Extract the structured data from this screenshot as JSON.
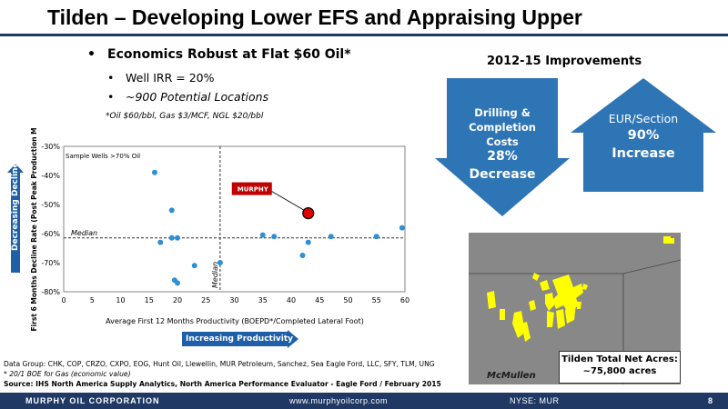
{
  "header": {
    "title": "Tilden – Developing Lower EFS and Appraising Upper"
  },
  "bullets": {
    "main": "Economics Robust at Flat $60 Oil*",
    "sub": [
      "Well IRR = 20%",
      "~900 Potential Locations"
    ],
    "footnote": "*Oil $60/bbl, Gas $3/MCF, NGL $20/bbl"
  },
  "improvements": {
    "title": "2012-15 Improvements",
    "drilling": {
      "label": "Drilling & Completion Costs",
      "value": "28%",
      "change": "Decrease",
      "color": "#2e75b6"
    },
    "eur": {
      "label": "EUR/Section",
      "value": "90%",
      "change": "Increase",
      "color": "#2e75b6"
    }
  },
  "chart_data": {
    "type": "scatter",
    "note": "Sample Wells >70% Oil",
    "xlabel": "Average First 12 Months Productivity (BOEPD*/Completed Lateral Foot)",
    "ylabel": "First 6 Months Decline Rate (Post Peak Production Month)",
    "xlim": [
      0,
      60
    ],
    "ylim": [
      -80,
      -30
    ],
    "x_ticks": [
      0,
      5,
      10,
      15,
      20,
      25,
      30,
      35,
      40,
      45,
      50,
      55,
      60
    ],
    "y_ticks": [
      -30,
      -40,
      -50,
      -60,
      -70,
      -80
    ],
    "y_tick_labels": [
      "-30%",
      "-40%",
      "-50%",
      "-60%",
      "-70%",
      "-80%"
    ],
    "median_x": 27.5,
    "median_y": -61.5,
    "median_x_label": "Median",
    "median_y_label": "Median",
    "point_color": "#2e8fd6",
    "highlight_color": "#e00000",
    "series": [
      {
        "points": [
          [
            16,
            -39
          ],
          [
            19,
            -52
          ],
          [
            17,
            -63
          ],
          [
            19,
            -61.5
          ],
          [
            20,
            -61.5
          ],
          [
            19.5,
            -76
          ],
          [
            20,
            -77
          ],
          [
            23,
            -71
          ],
          [
            27.5,
            -70
          ],
          [
            35,
            -60.5
          ],
          [
            37,
            -61
          ],
          [
            42,
            -67.5
          ],
          [
            43,
            -63
          ],
          [
            47,
            -61
          ],
          [
            55,
            -61
          ],
          [
            59.5,
            -58
          ]
        ]
      }
    ],
    "highlight": {
      "label": "MURPHY",
      "x": 43,
      "y": -53
    }
  },
  "axis_arrows": {
    "y": "Decreasing Decline",
    "x": "Increasing Productivity"
  },
  "sources": {
    "data_group": "Data Group: CHK, COP, CRZO, CXPO, EOG, Hunt Oil, Llewellin, MUR Petroleum, Sanchez, Sea Eagle Ford, LLC, SFY, TLM, UNG",
    "boe_note": "* 20/1 BOE for Gas (economic value)",
    "source": "Source: IHS North America Supply Analytics, North America Performance Evaluator - Eagle Ford / February 2015"
  },
  "map": {
    "county": "McMullen",
    "acres_label": "Tilden Total Net Acres:",
    "acres_value": "~75,800 acres",
    "acreage_color": "#ffff00"
  },
  "footer": {
    "company": "MURPHY OIL CORPORATION",
    "url": "www.murphyoilcorp.com",
    "ticker": "NYSE: MUR",
    "page": "8"
  }
}
